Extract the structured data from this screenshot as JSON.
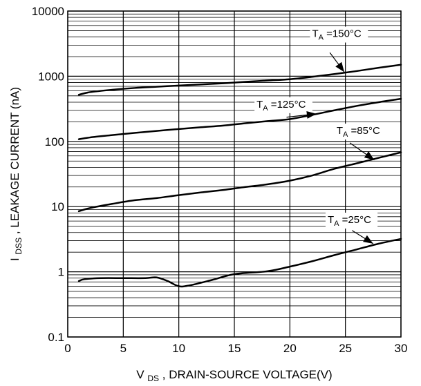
{
  "chart_data": {
    "type": "line",
    "title": "",
    "xlabel": {
      "prefix": "V",
      "sub": "DS",
      "suffix": ", DRAIN-SOURCE VOLTAGE(V)"
    },
    "ylabel": {
      "prefix": "I",
      "sub": "DSS",
      "suffix": ", LEAKAGE CURRENT (nA)"
    },
    "x_scale": "linear",
    "y_scale": "log",
    "xlim": [
      0,
      30
    ],
    "ylim": [
      0.1,
      10000
    ],
    "x_ticks": [
      0,
      5,
      10,
      15,
      20,
      25,
      30
    ],
    "x_tick_labels": [
      "0",
      "5",
      "10",
      "15",
      "20",
      "25",
      "30"
    ],
    "y_ticks": [
      0.1,
      1,
      10,
      100,
      1000,
      10000
    ],
    "y_tick_labels": [
      "0.1",
      "1",
      "10",
      "100",
      "1000",
      "10000"
    ],
    "grid": true,
    "colors": {
      "line": "#000000",
      "grid": "#000000",
      "background": "#ffffff"
    },
    "series": [
      {
        "label_prefix": "T",
        "label_sub": "A",
        "label_suffix": " =150°C",
        "x": [
          1,
          2,
          4,
          6,
          8,
          10,
          12,
          14,
          16,
          18,
          20,
          22,
          24,
          26,
          28,
          30
        ],
        "y": [
          520,
          570,
          620,
          660,
          690,
          720,
          750,
          780,
          820,
          860,
          900,
          980,
          1080,
          1200,
          1350,
          1500
        ]
      },
      {
        "label_prefix": "T",
        "label_sub": "A",
        "label_suffix": " =125°C",
        "x": [
          1,
          2,
          4,
          6,
          8,
          10,
          12,
          14,
          16,
          18,
          20,
          22,
          24,
          26,
          28,
          30
        ],
        "y": [
          108,
          115,
          125,
          135,
          145,
          155,
          165,
          175,
          190,
          205,
          220,
          255,
          300,
          350,
          400,
          450
        ]
      },
      {
        "label_prefix": "T",
        "label_sub": "A",
        "label_suffix": " =85°C",
        "x": [
          1,
          2,
          4,
          6,
          8,
          10,
          12,
          14,
          16,
          18,
          20,
          22,
          24,
          26,
          28,
          30
        ],
        "y": [
          8.5,
          9.5,
          11,
          12.5,
          13.5,
          15,
          16.5,
          18,
          20,
          22,
          25,
          30,
          38,
          46,
          56,
          68
        ]
      },
      {
        "label_prefix": "T",
        "label_sub": "A",
        "label_suffix": " =25°C",
        "x": [
          1,
          1.5,
          3,
          5,
          7,
          8,
          9,
          10,
          11,
          13,
          15,
          18,
          20,
          22,
          24,
          26,
          28,
          30
        ],
        "y": [
          0.72,
          0.77,
          0.8,
          0.8,
          0.8,
          0.82,
          0.72,
          0.6,
          0.62,
          0.75,
          0.92,
          1.02,
          1.2,
          1.45,
          1.8,
          2.2,
          2.7,
          3.2
        ]
      }
    ]
  }
}
